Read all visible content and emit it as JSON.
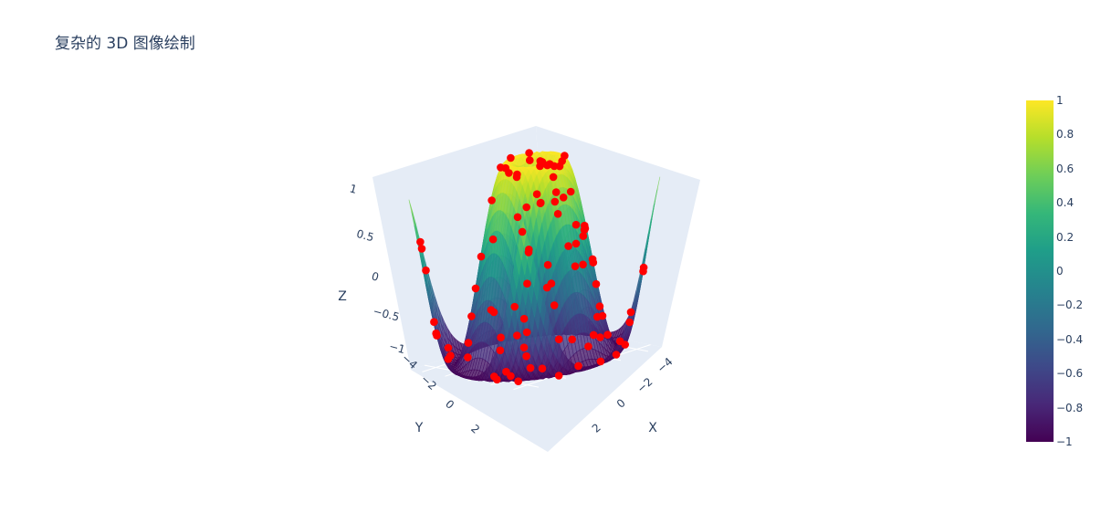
{
  "chart_data": {
    "type": "3d-surface-scatter",
    "title": "复杂的 3D 图像绘制",
    "axes": {
      "x": {
        "label": "X",
        "ticks": [
          "−4",
          "−2",
          "0",
          "2"
        ]
      },
      "y": {
        "label": "Y",
        "ticks": [
          "−4",
          "−2",
          "0",
          "2"
        ]
      },
      "z": {
        "label": "Z",
        "ticks": [
          "1",
          "0.5",
          "0",
          "−0.5",
          "−1"
        ],
        "range": [
          -1,
          1
        ]
      }
    },
    "surface": {
      "function": "z = sin(sqrt(x^2 + y^2))",
      "x_range": [
        -5,
        5
      ],
      "y_range": [
        -5,
        5
      ],
      "colorscale": "Viridis",
      "opacity": 0.7
    },
    "scatter": {
      "color": "#ff0000",
      "count": 100,
      "mode": "markers"
    },
    "colorbar": {
      "range": [
        -1,
        1
      ],
      "ticks": [
        "1",
        "0.8",
        "0.6",
        "0.4",
        "0.2",
        "0",
        "−0.2",
        "−0.4",
        "−0.6",
        "−0.8",
        "−1"
      ]
    }
  }
}
